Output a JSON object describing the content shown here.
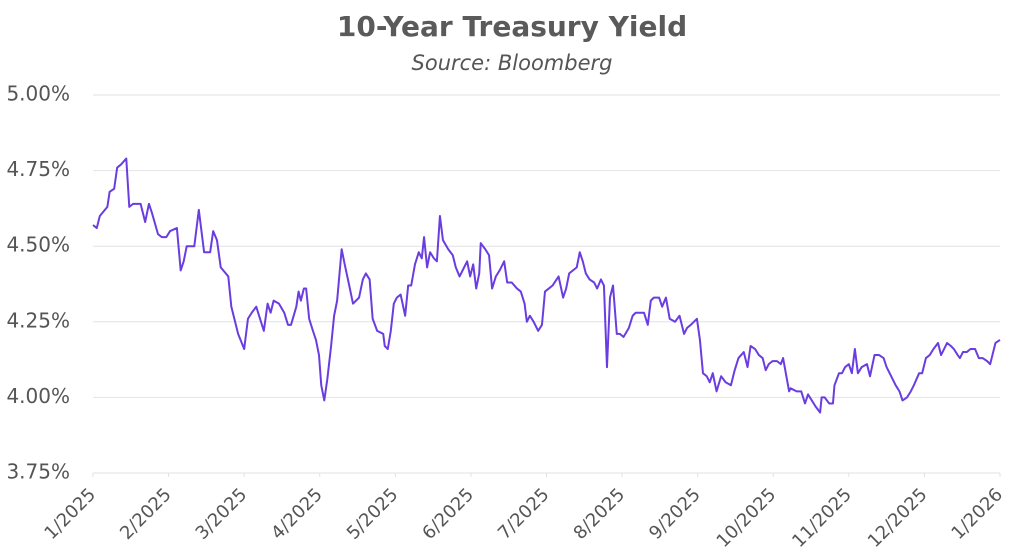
{
  "chart_data": {
    "type": "line",
    "title": "10-Year Treasury Yield",
    "subtitle": "Source: Bloomberg",
    "color": "#6a3de0",
    "grid": true,
    "xlim": [
      0,
      12
    ],
    "xticks": [
      {
        "value": 0,
        "label": "1/2025"
      },
      {
        "value": 1,
        "label": "2/2025"
      },
      {
        "value": 2,
        "label": "3/2025"
      },
      {
        "value": 3,
        "label": "4/2025"
      },
      {
        "value": 4,
        "label": "5/2025"
      },
      {
        "value": 5,
        "label": "6/2025"
      },
      {
        "value": 6,
        "label": "7/2025"
      },
      {
        "value": 7,
        "label": "8/2025"
      },
      {
        "value": 8,
        "label": "9/2025"
      },
      {
        "value": 9,
        "label": "10/2025"
      },
      {
        "value": 10,
        "label": "11/2025"
      },
      {
        "value": 11,
        "label": "12/2025"
      },
      {
        "value": 12,
        "label": "1/2026"
      }
    ],
    "ylim": [
      3.75,
      5
    ],
    "yticks": [
      {
        "value": 3.75,
        "label": "3.75%"
      },
      {
        "value": 4,
        "label": "4.00%"
      },
      {
        "value": 4.25,
        "label": "4.25%"
      },
      {
        "value": 4.5,
        "label": "4.50%"
      },
      {
        "value": 4.75,
        "label": "4.75%"
      },
      {
        "value": 5,
        "label": "5.00%"
      }
    ],
    "x": [
      0,
      0.05,
      0.09,
      0.19,
      0.22,
      0.28,
      0.32,
      0.37,
      0.44,
      0.48,
      0.53,
      0.63,
      0.69,
      0.74,
      0.78,
      0.86,
      0.91,
      0.97,
      1.02,
      1.11,
      1.16,
      1.2,
      1.24,
      1.34,
      1.4,
      1.47,
      1.55,
      1.59,
      1.64,
      1.69,
      1.79,
      1.83,
      1.88,
      1.92,
      2,
      2.05,
      2.1,
      2.16,
      2.21,
      2.26,
      2.31,
      2.35,
      2.39,
      2.46,
      2.53,
      2.58,
      2.62,
      2.69,
      2.72,
      2.75,
      2.79,
      2.82,
      2.86,
      2.91,
      2.95,
      2.99,
      3.02,
      3.06,
      3.1,
      3.15,
      3.19,
      3.23,
      3.29,
      3.33,
      3.39,
      3.44,
      3.48,
      3.52,
      3.57,
      3.61,
      3.66,
      3.7,
      3.76,
      3.84,
      3.86,
      3.9,
      3.94,
      3.98,
      4.02,
      4.07,
      4.13,
      4.17,
      4.21,
      4.26,
      4.31,
      4.35,
      4.38,
      4.42,
      4.46,
      4.51,
      4.55,
      4.59,
      4.63,
      4.7,
      4.76,
      4.8,
      4.85,
      4.91,
      4.95,
      4.99,
      5.03,
      5.07,
      5.11,
      5.13,
      5.19,
      5.24,
      5.28,
      5.33,
      5.38,
      5.44,
      5.48,
      5.54,
      5.61,
      5.66,
      5.71,
      5.74,
      5.78,
      5.83,
      5.89,
      5.94,
      5.98,
      6.03,
      6.08,
      6.16,
      6.22,
      6.26,
      6.3,
      6.35,
      6.4,
      6.44,
      6.48,
      6.52,
      6.57,
      6.63,
      6.67,
      6.72,
      6.76,
      6.8,
      6.84,
      6.88,
      6.93,
      6.97,
      7.02,
      7.09,
      7.14,
      7.18,
      7.24,
      7.29,
      7.34,
      7.38,
      7.42,
      7.49,
      7.53,
      7.58,
      7.63,
      7.7,
      7.76,
      7.82,
      7.86,
      7.91,
      7.99,
      8.03,
      8.07,
      8.12,
      8.16,
      8.2,
      8.25,
      8.31,
      8.37,
      8.44,
      8.49,
      8.54,
      8.61,
      8.66,
      8.7,
      8.76,
      8.81,
      8.86,
      8.9,
      8.94,
      8.99,
      9.05,
      9.1,
      9.13,
      9.21,
      9.23,
      9.31,
      9.37,
      9.42,
      9.46,
      9.51,
      9.56,
      9.62,
      9.64,
      9.68,
      9.74,
      9.79,
      9.81,
      9.87,
      9.91,
      9.95,
      10,
      10.04,
      10.08,
      10.12,
      10.17,
      10.24,
      10.28,
      10.34,
      10.4,
      10.46,
      10.5,
      10.56,
      10.62,
      10.67,
      10.71,
      10.77,
      10.82,
      10.86,
      10.93,
      10.97,
      11.02,
      11.07,
      11.12,
      11.18,
      11.22,
      11.26,
      11.3,
      11.35,
      11.39,
      11.44,
      11.47,
      11.51,
      11.56,
      11.61,
      11.67,
      11.72,
      11.77,
      11.83,
      11.87,
      11.9,
      11.94,
      12
    ],
    "values": [
      4.57,
      4.56,
      4.6,
      4.63,
      4.68,
      4.69,
      4.76,
      4.77,
      4.79,
      4.63,
      4.64,
      4.64,
      4.58,
      4.64,
      4.61,
      4.54,
      4.53,
      4.53,
      4.55,
      4.56,
      4.42,
      4.45,
      4.5,
      4.5,
      4.62,
      4.48,
      4.48,
      4.55,
      4.52,
      4.43,
      4.4,
      4.3,
      4.25,
      4.21,
      4.16,
      4.26,
      4.28,
      4.3,
      4.26,
      4.22,
      4.31,
      4.28,
      4.32,
      4.31,
      4.28,
      4.24,
      4.24,
      4.3,
      4.35,
      4.32,
      4.36,
      4.36,
      4.26,
      4.22,
      4.19,
      4.14,
      4.04,
      3.99,
      4.06,
      4.17,
      4.27,
      4.32,
      4.49,
      4.44,
      4.37,
      4.31,
      4.32,
      4.33,
      4.39,
      4.41,
      4.39,
      4.26,
      4.22,
      4.21,
      4.17,
      4.16,
      4.22,
      4.31,
      4.33,
      4.34,
      4.27,
      4.37,
      4.37,
      4.44,
      4.48,
      4.46,
      4.53,
      4.43,
      4.48,
      4.46,
      4.45,
      4.6,
      4.52,
      4.49,
      4.47,
      4.43,
      4.4,
      4.43,
      4.45,
      4.4,
      4.44,
      4.36,
      4.41,
      4.51,
      4.49,
      4.47,
      4.36,
      4.4,
      4.42,
      4.45,
      4.38,
      4.38,
      4.36,
      4.35,
      4.31,
      4.25,
      4.27,
      4.25,
      4.22,
      4.24,
      4.35,
      4.36,
      4.37,
      4.4,
      4.33,
      4.36,
      4.41,
      4.42,
      4.43,
      4.48,
      4.45,
      4.41,
      4.39,
      4.38,
      4.36,
      4.39,
      4.37,
      4.1,
      4.33,
      4.37,
      4.21,
      4.21,
      4.2,
      4.23,
      4.27,
      4.28,
      4.28,
      4.28,
      4.24,
      4.32,
      4.33,
      4.33,
      4.3,
      4.33,
      4.26,
      4.25,
      4.27,
      4.21,
      4.23,
      4.24,
      4.26,
      4.19,
      4.08,
      4.07,
      4.05,
      4.08,
      4.02,
      4.07,
      4.05,
      4.04,
      4.09,
      4.13,
      4.15,
      4.1,
      4.17,
      4.16,
      4.14,
      4.13,
      4.09,
      4.11,
      4.12,
      4.12,
      4.11,
      4.13,
      4.02,
      4.03,
      4.02,
      4.02,
      3.98,
      4.01,
      3.99,
      3.97,
      3.95,
      4,
      4,
      3.98,
      3.98,
      4.04,
      4.08,
      4.08,
      4.1,
      4.11,
      4.08,
      4.16,
      4.08,
      4.1,
      4.11,
      4.07,
      4.14,
      4.14,
      4.13,
      4.1,
      4.07,
      4.04,
      4.02,
      3.99,
      4,
      4.02,
      4.04,
      4.08,
      4.08,
      4.13,
      4.14,
      4.16,
      4.18,
      4.14,
      4.16,
      4.18,
      4.17,
      4.16,
      4.14,
      4.13,
      4.15,
      4.15,
      4.16,
      4.16,
      4.13,
      4.13,
      4.12,
      4.11,
      4.14,
      4.18,
      4.19
    ]
  }
}
